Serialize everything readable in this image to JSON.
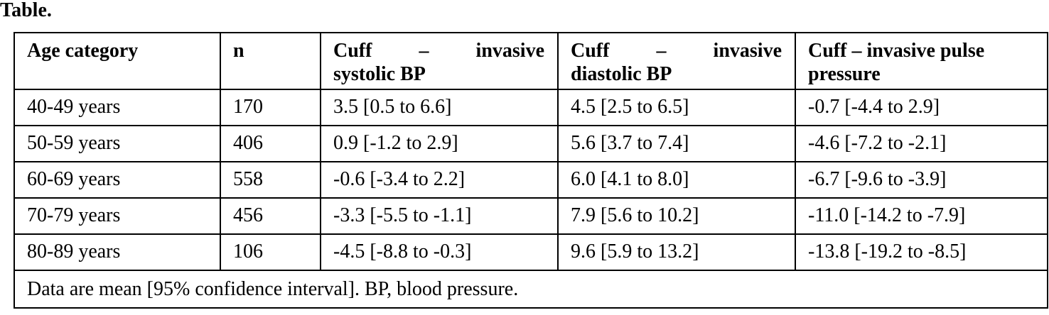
{
  "caption": "Table.",
  "headers": [
    {
      "line1": "Age category",
      "line2": ""
    },
    {
      "line1": "n",
      "line2": ""
    },
    {
      "line1": "Cuff – invasive",
      "line2": "systolic BP"
    },
    {
      "line1": "Cuff – invasive",
      "line2": "diastolic BP"
    },
    {
      "line1": "Cuff – invasive pulse",
      "line2": "pressure"
    }
  ],
  "rows": [
    [
      "40-49 years",
      "170",
      "3.5 [0.5 to 6.6]",
      "4.5 [2.5 to 6.5]",
      "-0.7 [-4.4 to 2.9]"
    ],
    [
      "50-59 years",
      "406",
      "0.9 [-1.2 to 2.9]",
      "5.6 [3.7 to 7.4]",
      "-4.6 [-7.2 to -2.1]"
    ],
    [
      "60-69 years",
      "558",
      "-0.6 [-3.4 to 2.2]",
      "6.0 [4.1 to 8.0]",
      "-6.7 [-9.6 to -3.9]"
    ],
    [
      "70-79 years",
      "456",
      "-3.3 [-5.5 to -1.1]",
      "7.9 [5.6 to 10.2]",
      "-11.0 [-14.2 to -7.9]"
    ],
    [
      "80-89 years",
      "106",
      "-4.5 [-8.8 to -0.3]",
      "9.6 [5.9 to 13.2]",
      "-13.8 [-19.2 to -8.5]"
    ]
  ],
  "footnote": "Data are mean [95% confidence interval]. BP, blood pressure."
}
